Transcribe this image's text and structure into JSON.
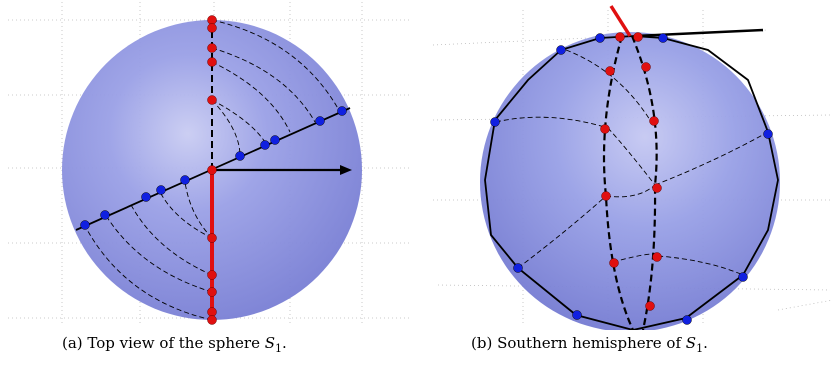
{
  "figure": {
    "panels": [
      {
        "id": "a",
        "caption_prefix": "(a) Top view of the sphere ",
        "caption_math": "S",
        "caption_sub": "1",
        "caption_suffix": "."
      },
      {
        "id": "b",
        "caption_prefix": "(b) Southern hemisphere of ",
        "caption_math": "S",
        "caption_sub": "1",
        "caption_suffix": "."
      }
    ],
    "colors": {
      "sphere_fill": "#8a8fe0",
      "sphere_edge": "#6b70c8",
      "red_points": "#e01010",
      "blue_points": "#1020e0",
      "grid": "#bbbbbb",
      "curves": "#000000"
    }
  }
}
